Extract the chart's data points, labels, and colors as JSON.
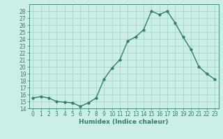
{
  "x": [
    0,
    1,
    2,
    3,
    4,
    5,
    6,
    7,
    8,
    9,
    10,
    11,
    12,
    13,
    14,
    15,
    16,
    17,
    18,
    19,
    20,
    21,
    22,
    23
  ],
  "y": [
    15.5,
    15.7,
    15.5,
    15.0,
    14.9,
    14.8,
    14.3,
    14.8,
    15.5,
    18.2,
    19.8,
    21.0,
    23.7,
    24.3,
    25.3,
    28.0,
    27.5,
    28.0,
    26.3,
    24.3,
    22.5,
    20.0,
    19.0,
    18.2
  ],
  "xlabel": "Humidex (Indice chaleur)",
  "line_color": "#2e7d6e",
  "marker": "o",
  "marker_size": 2.5,
  "bg_color": "#cceee8",
  "grid_color": "#aad4ce",
  "ylim": [
    14,
    29
  ],
  "xlim": [
    -0.5,
    23.5
  ],
  "yticks": [
    14,
    15,
    16,
    17,
    18,
    19,
    20,
    21,
    22,
    23,
    24,
    25,
    26,
    27,
    28
  ],
  "xticks": [
    0,
    1,
    2,
    3,
    4,
    5,
    6,
    7,
    8,
    9,
    10,
    11,
    12,
    13,
    14,
    15,
    16,
    17,
    18,
    19,
    20,
    21,
    22,
    23
  ],
  "tick_fontsize": 5.5,
  "xlabel_fontsize": 6.5
}
